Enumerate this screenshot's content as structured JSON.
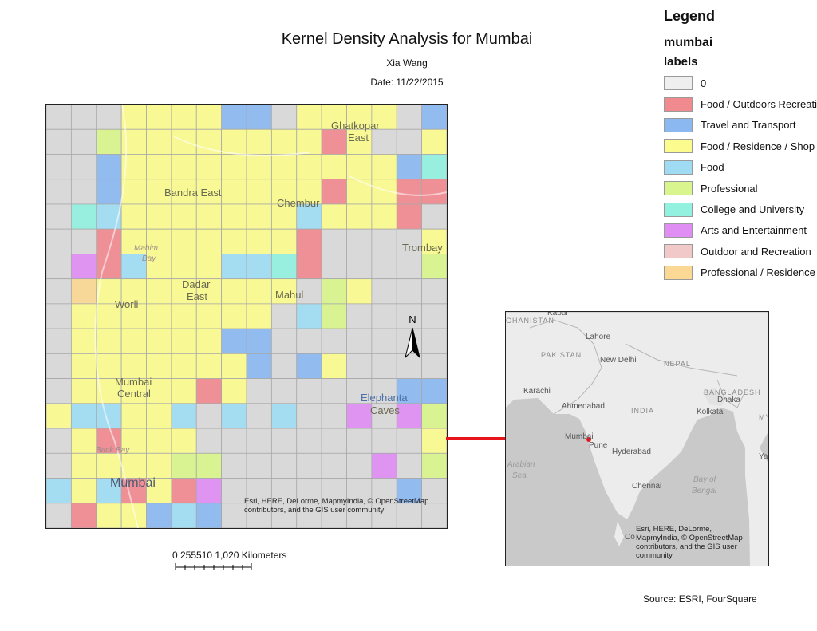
{
  "title": "Kernel Density Analysis for Mumbai",
  "author": "Xia Wang",
  "date": "Date: 11/22/2015",
  "source": "Source: ESRI, FourSquare",
  "legend": {
    "title": "Legend",
    "layer": "mumbai",
    "field": "labels",
    "items": [
      {
        "label": "0",
        "color": "#efefef"
      },
      {
        "label": "Food / Outdoors Recreation",
        "color": "#f08a8f"
      },
      {
        "label": "Travel and Transport",
        "color": "#8cb8f2"
      },
      {
        "label": "Food / Residence / Shop",
        "color": "#fbfb8e"
      },
      {
        "label": "Food",
        "color": "#9fdcf4"
      },
      {
        "label": "Professional",
        "color": "#d9f58d"
      },
      {
        "label": "College and University",
        "color": "#93f1df"
      },
      {
        "label": "Arts and Entertainment",
        "color": "#e18ef4"
      },
      {
        "label": "Outdoor and Recreation",
        "color": "#f1c9c9"
      },
      {
        "label": "Professional / Residence",
        "color": "#fbd894"
      }
    ]
  },
  "main_map": {
    "place_labels": {
      "ghatkopar": "Ghatkopar",
      "east1": "East",
      "bandra_east": "Bandra East",
      "chembur": "Chembur",
      "trombay": "Trombay",
      "mahim": "Mahim",
      "bay": "Bay",
      "dadar": "Dadar",
      "east2": "East",
      "worli": "Worli",
      "mahul": "Mahul",
      "mumbai_central_1": "Mumbai",
      "mumbai_central_2": "Central",
      "elephanta": "Elephanta",
      "caves": "Caves",
      "back_bay": "Back Bay",
      "mumbai": "Mumbai"
    },
    "north_label": "N",
    "credits": "Esri, HERE, DeLorme, MapmyIndia, © OpenStreetMap contributors, and the GIS user community",
    "grid": {
      "cols": 16,
      "rows": 17,
      "cells": [
        "0000000300044000",
        "0000000000011000",
        "0000000000111100",
        "0000000000011111",
        "0000000000001111",
        "0000000000001110",
        "0000000000001100",
        "0000000000000000",
        "0000000000000000",
        "0000000000000000",
        "0000000000000000",
        "0000000000000000",
        "0000000000000000",
        "0000000000000000",
        "0000000000000000",
        "0000000000000000",
        "0000000000000000"
      ]
    },
    "classes": [
      "BBBBBBBBBBBBBBBB",
      "BBBBBBBBBBBBBBBB",
      "BBBBBBBBBBBBBBBB",
      "BBBBBBBBBBBBBBBB",
      "BBBBBBBBBBBBBBBB",
      "BBBBBBBBBBBBBBBB",
      "BBBBBBBBBBBBBBBB",
      "BBBBBBBBBBBBBBBB",
      "BBBBBBBBBBBBBBBB",
      "BBBBBBBBBBBBBBBB",
      "BBBBBBBBBBBBBBBB",
      "BBBBBBBBBBBBBBBB",
      "BBBBBBBBBBBBBBBB",
      "BBBBBBBBBBBBBBBB",
      "BBBBBBBBBBBBBBBB",
      "BBBBBBBBBBBBBBBB",
      "BBBBBBBBBBBBBBBB"
    ],
    "class_grid": [
      "0003333CC033330C",
      "00533333333A3003",
      "00C33333333333BG",
      "00C33333333A33AA",
      "0GD3333333D333A0",
      "00A3333333A00003",
      "0HAD333DDGA0000F",
      "0J33333333053000",
      "0333333330DF0000",
      "0333333CC0000000",
      "03333333C0C30000",
      "033333A3000000CB",
      "3DD33D0D0D00I0H5",
      "03A3330000000003",
      "0333355000000H05",
      "D3DA3AI0000000C0",
      "0A33CDC000000000"
    ]
  },
  "scalebar": {
    "ticks": "0  255510    1,020 Kilometers"
  },
  "inset_map": {
    "labels": {
      "kabul": "Kabul",
      "afghanistan": "GHANISTAN",
      "lahore": "Lahore",
      "pakistan": "PAKISTAN",
      "new_delhi": "New Delhi",
      "nepal": "NEPAL",
      "karachi": "Karachi",
      "ahmedabad": "Ahmedabad",
      "india": "INDIA",
      "bangladesh": "BANGLADESH",
      "dhaka": "Dhaka",
      "kolkata": "Kolkata",
      "my": "MY",
      "mumbai": "Mumbai",
      "pune": "Pune",
      "hyderabad": "Hyderabad",
      "arabian": "Arabian",
      "sea": "Sea",
      "chennai": "Chennai",
      "bay_of": "Bay of",
      "bengal": "Bengal",
      "co": "Co",
      "ya": "Ya"
    },
    "credits": "Esri, HERE, DeLorme, MapmyIndia, © OpenStreetMap contributors, and the GIS user community"
  }
}
